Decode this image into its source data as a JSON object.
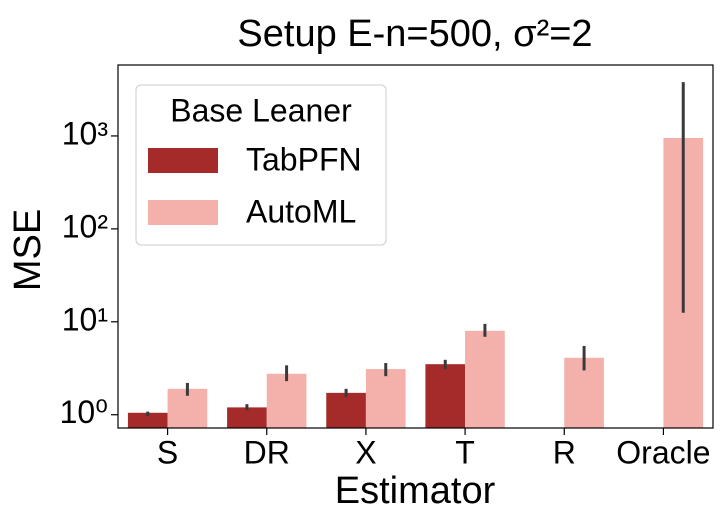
{
  "chart_data": {
    "type": "bar",
    "title": "Setup E-n=500, σ²=2",
    "x_label": "Estimator",
    "y_label": "MSE",
    "log_scale": true,
    "categories": [
      "S",
      "DR",
      "X",
      "T",
      "R",
      "Oracle"
    ],
    "legend_title": "Base Leaner",
    "legend_position": "upper-left",
    "series": [
      {
        "name": "TabPFN",
        "color": "#a52a2a",
        "values": [
          1.05,
          1.2,
          1.72,
          3.5,
          null,
          null
        ],
        "err_low": [
          0.97,
          1.12,
          1.55,
          3.1,
          null,
          null
        ],
        "err_high": [
          1.08,
          1.3,
          1.9,
          3.9,
          null,
          null
        ]
      },
      {
        "name": "AutoML",
        "color": "#f4b0aa",
        "values": [
          1.9,
          2.76,
          3.1,
          8.0,
          4.1,
          950
        ],
        "err_low": [
          1.6,
          2.3,
          2.6,
          6.9,
          3.0,
          12.5
        ],
        "err_high": [
          2.2,
          3.4,
          3.6,
          9.5,
          5.5,
          3800
        ]
      }
    ],
    "ylim": [
      0.72,
      5800
    ],
    "yticks": [
      {
        "value": 1,
        "label": "10⁰"
      },
      {
        "value": 10,
        "label": "10¹"
      },
      {
        "value": 100,
        "label": "10²"
      },
      {
        "value": 1000,
        "label": "10³"
      }
    ]
  }
}
